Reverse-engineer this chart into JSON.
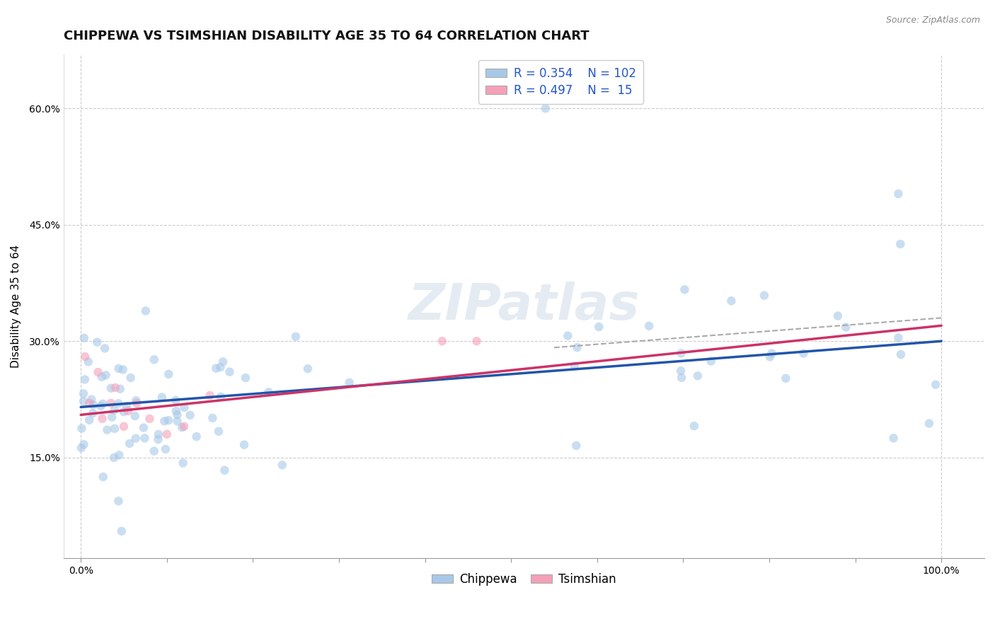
{
  "title": "CHIPPEWA VS TSIMSHIAN DISABILITY AGE 35 TO 64 CORRELATION CHART",
  "source_text": "Source: ZipAtlas.com",
  "ylabel": "Disability Age 35 to 64",
  "xlim": [
    -0.02,
    1.05
  ],
  "ylim": [
    0.02,
    0.67
  ],
  "yticks": [
    0.15,
    0.3,
    0.45,
    0.6
  ],
  "ytick_labels": [
    "15.0%",
    "30.0%",
    "45.0%",
    "60.0%"
  ],
  "xtick_positions": [
    0.0,
    0.1,
    0.2,
    0.3,
    0.4,
    0.5,
    0.6,
    0.7,
    0.8,
    0.9,
    1.0
  ],
  "chippewa_color": "#a8c8e8",
  "tsimshian_color": "#f4a0b8",
  "chippewa_line_color": "#2255aa",
  "tsimshian_line_color": "#cc3366",
  "dashed_line_color": "#aaaaaa",
  "legend_text_color": "#2255cc",
  "background_color": "#ffffff",
  "grid_color": "#cccccc",
  "title_fontsize": 13,
  "axis_label_fontsize": 11,
  "tick_fontsize": 10,
  "legend_fontsize": 12,
  "marker_size": 9,
  "marker_alpha": 0.6,
  "chippewa_reg_slope": 0.085,
  "chippewa_reg_intercept": 0.215,
  "tsimshian_reg_slope": 0.115,
  "tsimshian_reg_intercept": 0.205,
  "dashed_reg_slope": 0.085,
  "dashed_reg_intercept": 0.245
}
